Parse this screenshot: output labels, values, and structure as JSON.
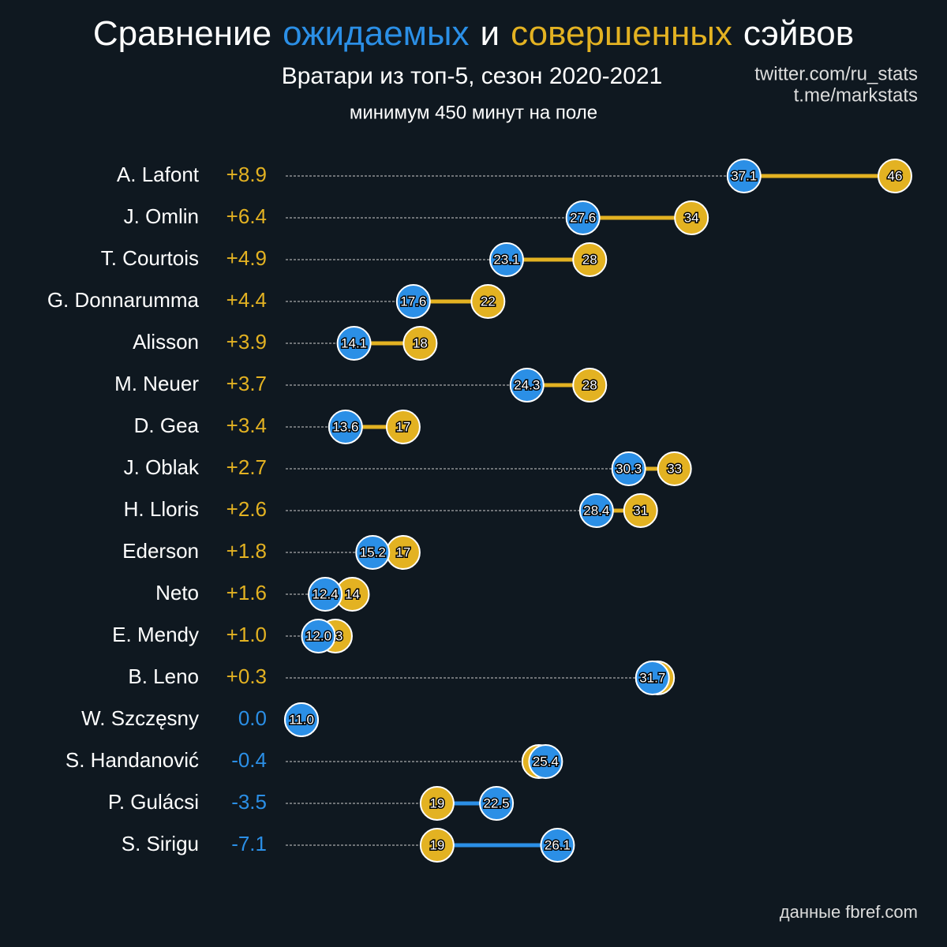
{
  "chart_data": {
    "type": "dumbbell",
    "title": [
      "Сравнение",
      "ожидаемых",
      "и",
      "совершенных",
      "сэйвов"
    ],
    "title_colors": [
      "#ffffff",
      "#2b8fe6",
      "#ffffff",
      "#e3b222",
      "#ffffff"
    ],
    "subtitle": "Вратари из топ-5, сезон 2020-2021",
    "note": "минимум 450 минут на поле",
    "credits": [
      "twitter.com/ru_stats",
      "t.me/markstats"
    ],
    "source": "данные fbref.com",
    "categories": [
      "A. Lafont",
      "J. Omlin",
      "T. Courtois",
      "G. Donnarumma",
      "Alisson",
      "M. Neuer",
      "D. Gea",
      "J. Oblak",
      "H. Lloris",
      "Ederson",
      "Neto",
      "E. Mendy",
      "B. Leno",
      "W. Szczęsny",
      "S. Handanović",
      "P. Gulácsi",
      "S. Sirigu"
    ],
    "difference": {
      "values": [
        8.9,
        6.4,
        4.9,
        4.4,
        3.9,
        3.7,
        3.4,
        2.7,
        2.6,
        1.8,
        1.6,
        1.0,
        0.3,
        0.0,
        -0.4,
        -3.5,
        -7.1
      ],
      "value_labels": [
        "+8.9",
        "+6.4",
        "+4.9",
        "+4.4",
        "+3.9",
        "+3.7",
        "+3.4",
        "+2.7",
        "+2.6",
        "+1.8",
        "+1.6",
        "+1.0",
        "+0.3",
        "0.0",
        "-0.4",
        "-3.5",
        "-7.1"
      ]
    },
    "series": [
      {
        "color": "#2b8fe6",
        "values": [
          37.1,
          27.6,
          23.1,
          17.6,
          14.1,
          24.3,
          13.6,
          30.3,
          28.4,
          15.2,
          12.4,
          12.0,
          31.7,
          11.0,
          25.4,
          22.5,
          26.1
        ],
        "value_labels": [
          "37.1",
          "27.6",
          "23.1",
          "17.6",
          "14.1",
          "24.3",
          "13.6",
          "30.3",
          "28.4",
          "15.2",
          "12.4",
          "12.0",
          "31.7",
          "11.0",
          "25.4",
          "22.5",
          "26.1"
        ]
      },
      {
        "color": "#e3b222",
        "values": [
          46,
          34,
          28,
          22,
          18,
          28,
          17,
          33,
          31,
          17,
          14,
          13,
          32,
          11,
          25,
          19,
          19
        ]
      }
    ]
  }
}
